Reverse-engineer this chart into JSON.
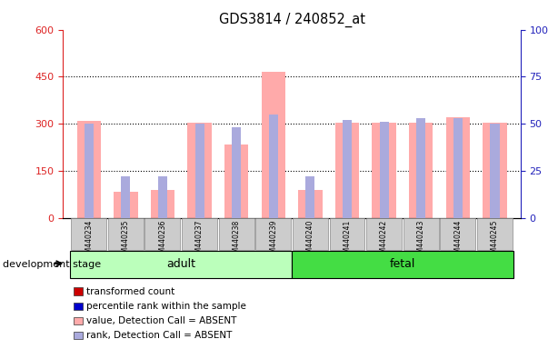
{
  "title": "GDS3814 / 240852_at",
  "samples": [
    "GSM440234",
    "GSM440235",
    "GSM440236",
    "GSM440237",
    "GSM440238",
    "GSM440239",
    "GSM440240",
    "GSM440241",
    "GSM440242",
    "GSM440243",
    "GSM440244",
    "GSM440245"
  ],
  "pink_values": [
    310,
    85,
    90,
    305,
    235,
    465,
    90,
    305,
    305,
    305,
    320,
    305
  ],
  "blue_pct": [
    50,
    22,
    22,
    50,
    48,
    55,
    22,
    52,
    51,
    53,
    53,
    50
  ],
  "groups": [
    {
      "label": "adult",
      "start": 0,
      "end": 6,
      "color": "#bbffbb"
    },
    {
      "label": "fetal",
      "start": 6,
      "end": 12,
      "color": "#44dd44"
    }
  ],
  "group_label": "development stage",
  "ylim_left": [
    0,
    600
  ],
  "ylim_right": [
    0,
    100
  ],
  "yticks_left": [
    0,
    150,
    300,
    450,
    600
  ],
  "yticks_right": [
    0,
    25,
    50,
    75,
    100
  ],
  "left_color": "#dd2222",
  "right_color": "#2222bb",
  "pink_bar_color": "#ffaaaa",
  "blue_bar_color": "#aaaadd",
  "legend_items": [
    {
      "label": "transformed count",
      "color": "#cc0000"
    },
    {
      "label": "percentile rank within the sample",
      "color": "#0000cc"
    },
    {
      "label": "value, Detection Call = ABSENT",
      "color": "#ffaaaa"
    },
    {
      "label": "rank, Detection Call = ABSENT",
      "color": "#aaaadd"
    }
  ],
  "background_color": "#ffffff"
}
